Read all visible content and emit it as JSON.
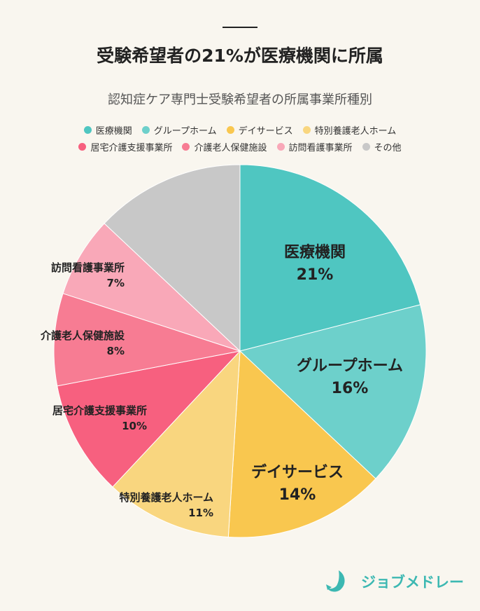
{
  "title": "受験希望者の21%が医療機関に所属",
  "brand": "ジョブメドレー",
  "chart_data": {
    "type": "pie",
    "title": "認知症ケア専門士受験希望者の所属事業所種別",
    "legend_position": "top",
    "start": "12 o'clock, clockwise",
    "slices": [
      {
        "label": "医療機関",
        "value": 21,
        "value_label": "21%",
        "color": "#4fc6c1"
      },
      {
        "label": "グループホーム",
        "value": 16,
        "value_label": "16%",
        "color": "#6dd0cb"
      },
      {
        "label": "デイサービス",
        "value": 14,
        "value_label": "14%",
        "color": "#f9c74f"
      },
      {
        "label": "特別養護老人ホーム",
        "value": 11,
        "value_label": "11%",
        "color": "#f9d67f"
      },
      {
        "label": "居宅介護支援事業所",
        "value": 10,
        "value_label": "10%",
        "color": "#f7607f"
      },
      {
        "label": "介護老人保健施設",
        "value": 8,
        "value_label": "8%",
        "color": "#f77c93"
      },
      {
        "label": "訪問看護事業所",
        "value": 7,
        "value_label": "7%",
        "color": "#f9a8b8"
      },
      {
        "label": "その他",
        "value": 13,
        "value_label": "",
        "color": "#c8c8c8"
      }
    ]
  }
}
